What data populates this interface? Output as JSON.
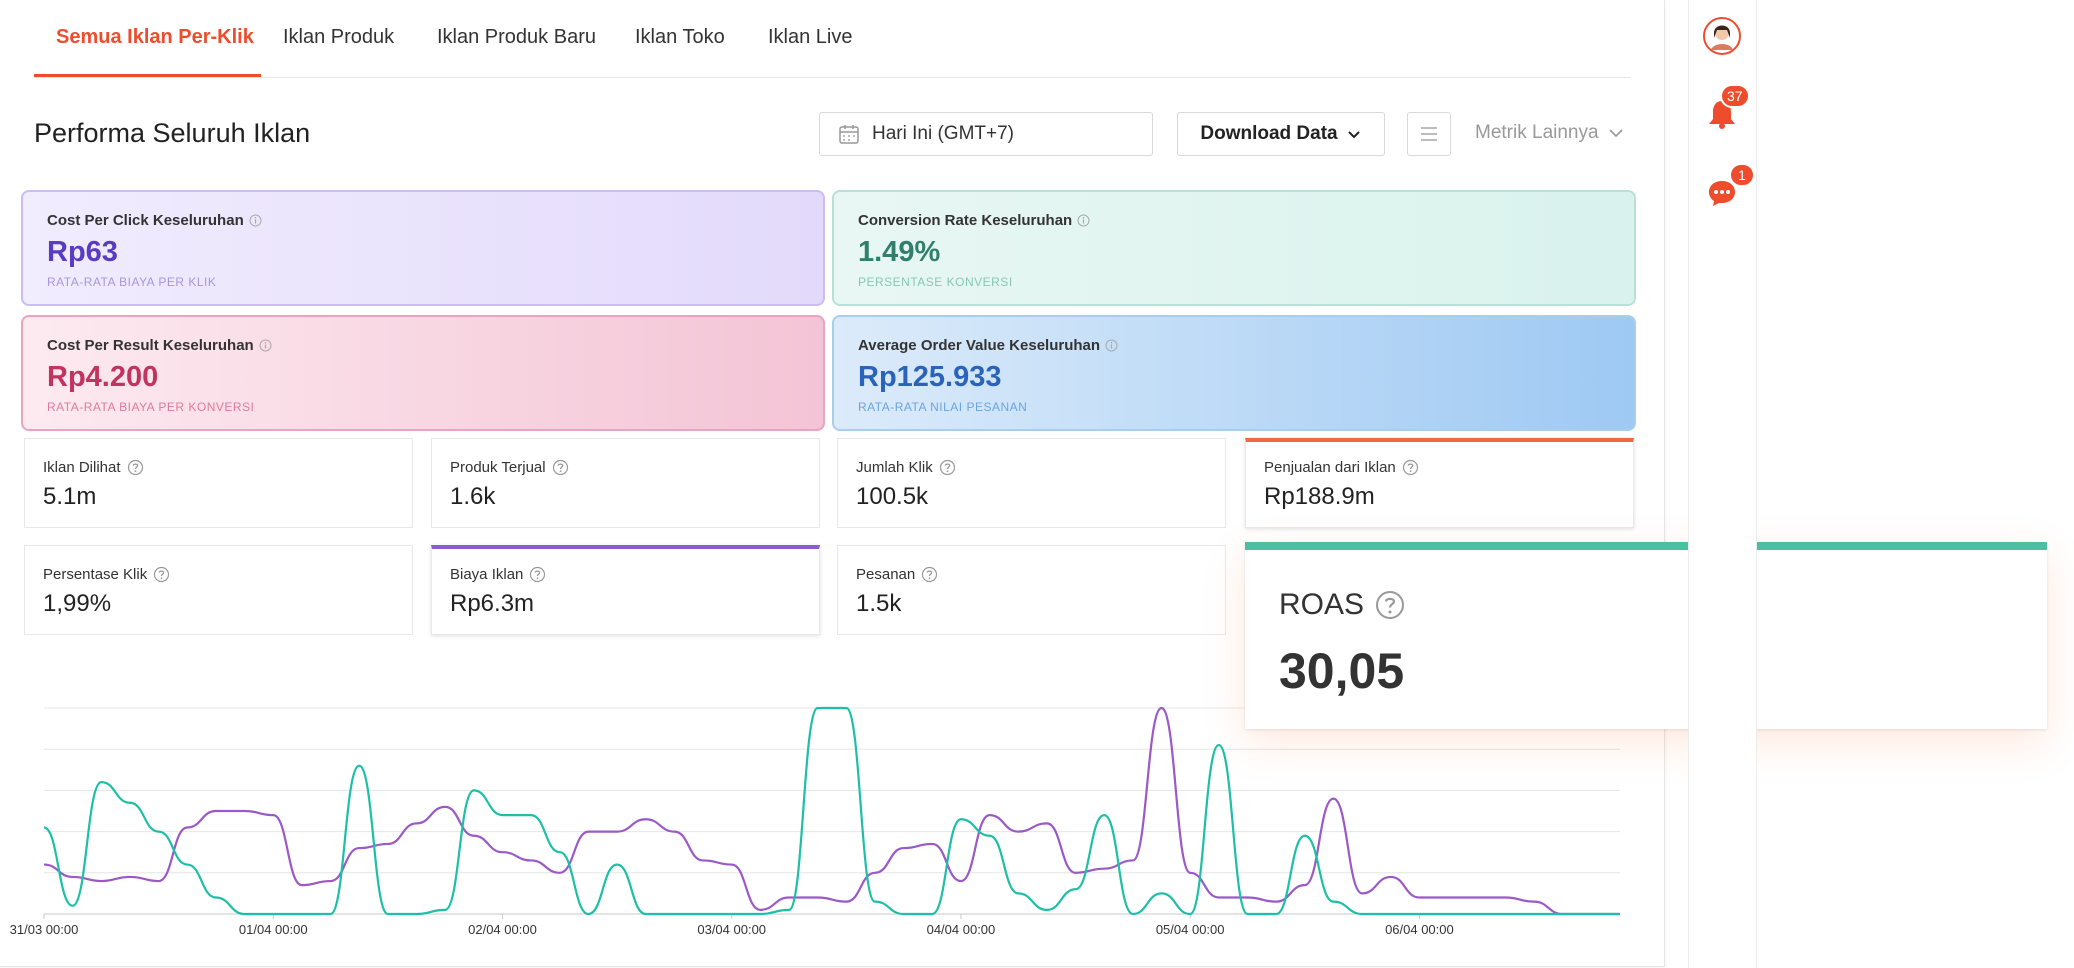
{
  "tabs": [
    "Semua Iklan Per-Klik",
    "Iklan Produk",
    "Iklan Produk Baru",
    "Iklan Toko",
    "Iklan Live"
  ],
  "header": {
    "title": "Performa Seluruh Iklan",
    "date_range": "Hari Ini (GMT+7)",
    "download": "Download Data",
    "more_metrics": "Metrik Lainnya"
  },
  "cards": [
    {
      "label": "Cost Per Click Keseluruhan",
      "value": "Rp63",
      "sub": "RATA-RATA BIAYA PER KLIK"
    },
    {
      "label": "Conversion Rate Keseluruhan",
      "value": "1.49%",
      "sub": "PERSENTASE KONVERSI"
    },
    {
      "label": "Cost Per Result Keseluruhan",
      "value": "Rp4.200",
      "sub": "RATA-RATA BIAYA PER KONVERSI"
    },
    {
      "label": "Average Order Value Keseluruhan",
      "value": "Rp125.933",
      "sub": "RATA-RATA NILAI PESANAN"
    }
  ],
  "stats": [
    {
      "label": "Iklan Dilihat",
      "value": "5.1m"
    },
    {
      "label": "Produk Terjual",
      "value": "1.6k"
    },
    {
      "label": "Jumlah Klik",
      "value": "100.5k"
    },
    {
      "label": "Penjualan dari Iklan",
      "value": "Rp188.9m"
    },
    {
      "label": "Persentase Klik",
      "value": "1,99%"
    },
    {
      "label": "Biaya Iklan",
      "value": "Rp6.3m"
    },
    {
      "label": "Pesanan",
      "value": "1.5k"
    }
  ],
  "roas": {
    "label": "ROAS",
    "value": "30,05"
  },
  "sidebar": {
    "notifications": 37,
    "messages": 1
  },
  "chart_data": {
    "type": "line",
    "categories": [
      "31/03 00:00",
      null,
      null,
      null,
      null,
      null,
      null,
      null,
      "01/04 00:00",
      null,
      null,
      null,
      null,
      null,
      null,
      null,
      "02/04 00:00",
      null,
      null,
      null,
      null,
      null,
      null,
      null,
      "03/04 00:00",
      null,
      null,
      null,
      null,
      null,
      null,
      null,
      "04/04 00:00",
      null,
      null,
      null,
      null,
      null,
      null,
      null,
      "05/04 00:00",
      null,
      null,
      null,
      null,
      null,
      null,
      null,
      "06/04 00:00",
      null,
      null,
      null,
      null,
      null,
      null,
      null
    ],
    "series": [
      {
        "color": "#9b59c7",
        "values": [
          1.2,
          0.9,
          0.8,
          0.9,
          0.8,
          2.1,
          2.5,
          2.5,
          2.4,
          0.7,
          0.8,
          1.6,
          1.7,
          2.2,
          2.6,
          1.9,
          1.5,
          1.3,
          1.0,
          2.0,
          2.0,
          2.3,
          2.0,
          1.3,
          1.2,
          0.1,
          0.4,
          0.4,
          0.3,
          1.0,
          1.6,
          1.7,
          0.8,
          2.4,
          2.0,
          2.2,
          1.0,
          1.1,
          1.3,
          5.0,
          1.0,
          0.4,
          0.4,
          0.3,
          0.7,
          2.8,
          0.5,
          0.9,
          0.4,
          0.4,
          0.4,
          0.4,
          0.3,
          0,
          0,
          0
        ]
      },
      {
        "color": "#1dbfa6",
        "values": [
          2.1,
          0.2,
          3.2,
          2.7,
          2.0,
          1.2,
          0.4,
          0,
          0,
          0,
          0,
          3.6,
          0,
          0,
          0.1,
          3.0,
          2.4,
          2.4,
          1.5,
          0,
          1.2,
          0,
          0,
          0,
          0,
          0,
          0.1,
          5.0,
          5.0,
          0.3,
          0,
          0,
          2.3,
          1.9,
          0.5,
          0.1,
          0.6,
          2.4,
          0,
          0.5,
          0,
          4.1,
          0,
          0,
          1.9,
          0.3,
          0,
          0,
          0,
          0,
          0,
          0,
          0,
          0,
          0,
          0
        ]
      }
    ],
    "ylim": [
      0,
      5
    ],
    "yticks": [
      0,
      1,
      2,
      3,
      4,
      5
    ],
    "grid": true
  }
}
